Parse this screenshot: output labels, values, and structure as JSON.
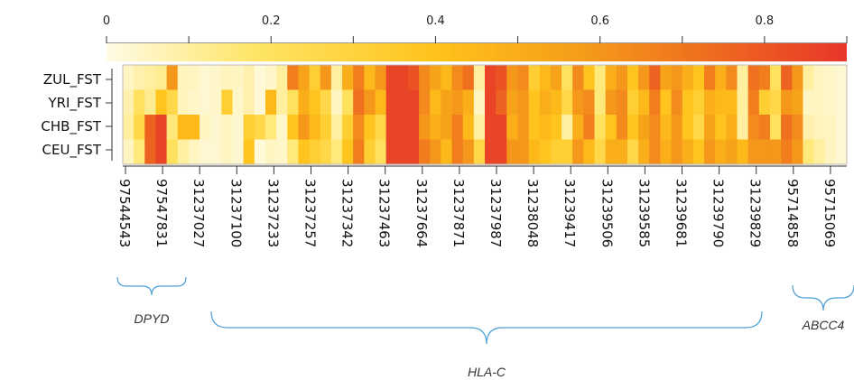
{
  "chart_data": {
    "type": "heatmap",
    "color_scale": {
      "ticks": [
        "0",
        "0.2",
        "0.4",
        "0.6",
        "0.8"
      ],
      "tick_values": [
        0,
        0.2,
        0.4,
        0.6,
        0.8
      ],
      "range": [
        0,
        0.9
      ],
      "colors": [
        "#fffbe6",
        "#ffe566",
        "#ffc21a",
        "#f59a1a",
        "#ee6b1f",
        "#e8352a"
      ]
    },
    "rows": [
      "ZUL_FST",
      "YRI_FST",
      "CHB_FST",
      "CEU_FST"
    ],
    "column_labels": [
      "97544543",
      "97547831",
      "31237027",
      "31237100",
      "31237233",
      "31237257",
      "31237342",
      "31237463",
      "31237664",
      "31237871",
      "31237987",
      "31238048",
      "31239417",
      "31239506",
      "31239585",
      "31239681",
      "31239790",
      "31239829",
      "95714858",
      "95715069"
    ],
    "values": [
      [
        0.05,
        0.08,
        0.1,
        0.12,
        0.55,
        0.06,
        0.05,
        0.03,
        0.04,
        0.06,
        0.05,
        0.08,
        0.02,
        0.04,
        0.1,
        0.65,
        0.5,
        0.3,
        0.55,
        0.1,
        0.45,
        0.65,
        0.4,
        0.55,
        0.85,
        0.85,
        0.8,
        0.6,
        0.5,
        0.4,
        0.6,
        0.7,
        0.1,
        0.85,
        0.8,
        0.55,
        0.6,
        0.3,
        0.4,
        0.5,
        0.2,
        0.6,
        0.35,
        0.15,
        0.45,
        0.55,
        0.35,
        0.55,
        0.75,
        0.5,
        0.55,
        0.45,
        0.35,
        0.65,
        0.45,
        0.6,
        0.1,
        0.7,
        0.65,
        0.2,
        0.75,
        0.55,
        0.1,
        0.05,
        0.04,
        0.03
      ],
      [
        0.08,
        0.2,
        0.12,
        0.35,
        0.25,
        0.06,
        0.04,
        0.03,
        0.04,
        0.3,
        0.04,
        0.08,
        0.02,
        0.4,
        0.1,
        0.2,
        0.45,
        0.35,
        0.25,
        0.05,
        0.2,
        0.7,
        0.55,
        0.4,
        0.85,
        0.85,
        0.85,
        0.6,
        0.4,
        0.5,
        0.55,
        0.45,
        0.05,
        0.85,
        0.75,
        0.5,
        0.55,
        0.35,
        0.45,
        0.4,
        0.25,
        0.55,
        0.6,
        0.15,
        0.55,
        0.6,
        0.3,
        0.4,
        0.65,
        0.35,
        0.6,
        0.35,
        0.3,
        0.45,
        0.4,
        0.4,
        0.1,
        0.65,
        0.3,
        0.25,
        0.55,
        0.5,
        0.05,
        0.05,
        0.04,
        0.03
      ],
      [
        0.1,
        0.25,
        0.75,
        0.85,
        0.15,
        0.4,
        0.4,
        0.05,
        0.03,
        0.05,
        0.03,
        0.3,
        0.25,
        0.15,
        0.04,
        0.35,
        0.55,
        0.4,
        0.3,
        0.1,
        0.3,
        0.6,
        0.35,
        0.25,
        0.85,
        0.85,
        0.85,
        0.55,
        0.45,
        0.5,
        0.65,
        0.4,
        0.1,
        0.85,
        0.85,
        0.45,
        0.55,
        0.35,
        0.4,
        0.35,
        0.1,
        0.45,
        0.65,
        0.2,
        0.35,
        0.6,
        0.35,
        0.5,
        0.6,
        0.4,
        0.55,
        0.35,
        0.25,
        0.5,
        0.35,
        0.45,
        0.1,
        0.6,
        0.65,
        0.2,
        0.7,
        0.6,
        0.08,
        0.06,
        0.05,
        0.03
      ],
      [
        0.05,
        0.15,
        0.75,
        0.85,
        0.2,
        0.1,
        0.05,
        0.03,
        0.03,
        0.05,
        0.03,
        0.35,
        0.02,
        0.05,
        0.04,
        0.15,
        0.35,
        0.3,
        0.25,
        0.15,
        0.35,
        0.65,
        0.3,
        0.2,
        0.85,
        0.85,
        0.85,
        0.65,
        0.55,
        0.4,
        0.65,
        0.55,
        0.25,
        0.85,
        0.85,
        0.55,
        0.55,
        0.4,
        0.35,
        0.3,
        0.3,
        0.55,
        0.4,
        0.25,
        0.45,
        0.45,
        0.25,
        0.45,
        0.6,
        0.45,
        0.55,
        0.45,
        0.35,
        0.55,
        0.45,
        0.5,
        0.4,
        0.55,
        0.55,
        0.55,
        0.65,
        0.55,
        0.15,
        0.1,
        0.05,
        0.03
      ]
    ],
    "genes": [
      "DPYD",
      "HLA-C",
      "ABCC4"
    ]
  }
}
